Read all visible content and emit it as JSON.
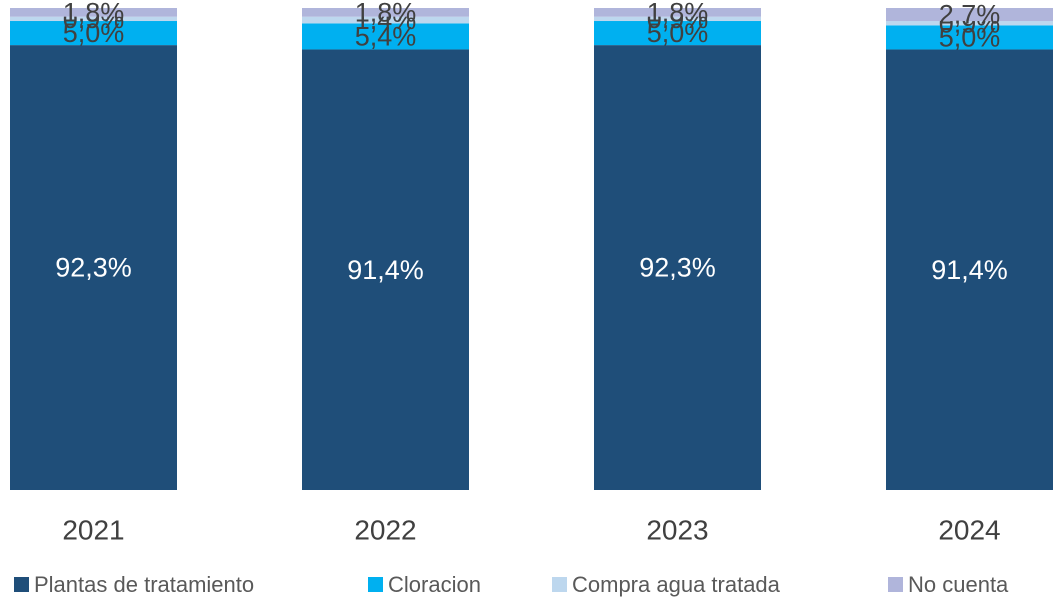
{
  "chart_data": {
    "type": "stacked_bar",
    "categories": [
      "2021",
      "2022",
      "2023",
      "2024"
    ],
    "series": [
      {
        "name": "Plantas de tratamiento",
        "color": "#1f4e79",
        "values": [
          92.3,
          91.4,
          92.3,
          91.4
        ],
        "value_labels": [
          "92,3%",
          "91,4%",
          "92,3%",
          "91,4%"
        ]
      },
      {
        "name": "Cloracion",
        "color": "#00b0f0",
        "values": [
          5.0,
          5.4,
          5.0,
          5.0
        ],
        "value_labels": [
          "5,0%",
          "5,4%",
          "5,0%",
          "5,0%"
        ]
      },
      {
        "name": "Compra agua tratada",
        "color": "#bdd7ee",
        "values": [
          0.9,
          1.4,
          0.9,
          0.9
        ],
        "value_labels": [
          "0,9%",
          "1,4%",
          "0,9%",
          "0,9%"
        ]
      },
      {
        "name": "No cuenta",
        "color": "#b0b5db",
        "values": [
          1.8,
          1.8,
          1.8,
          2.7
        ],
        "value_labels": [
          "1,8%",
          "1,8%",
          "1,8%",
          "2,7%"
        ]
      }
    ],
    "legend": "bottom"
  }
}
